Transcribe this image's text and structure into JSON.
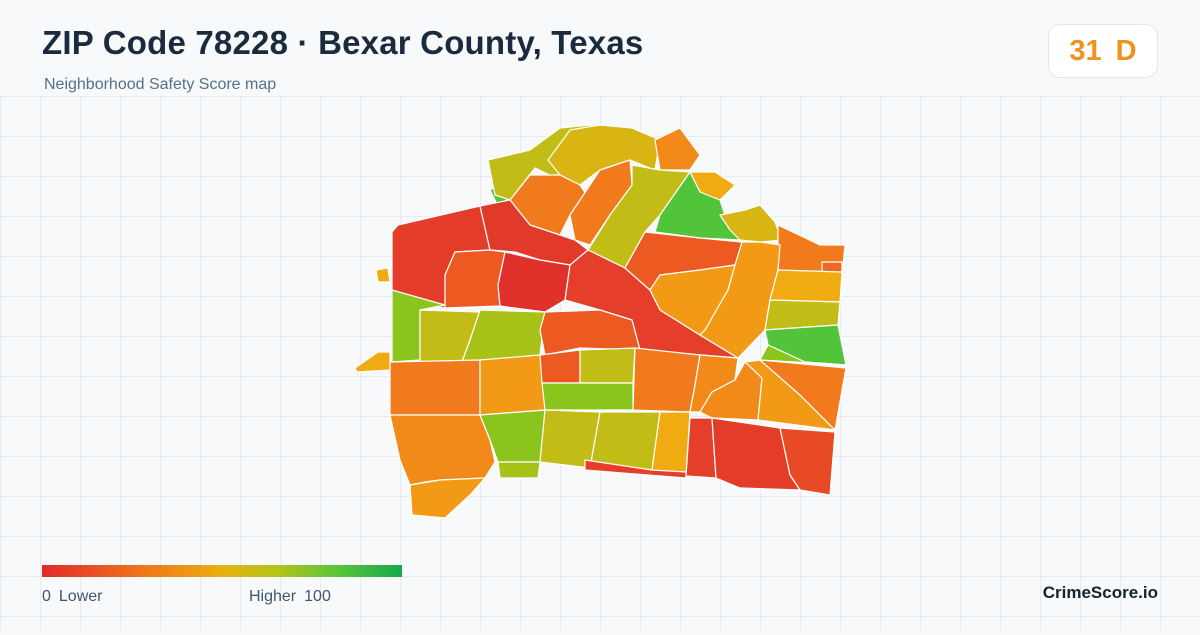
{
  "header": {
    "title": "ZIP Code 78228 · Bexar County, Texas",
    "subtitle": "Neighborhood Safety Score map"
  },
  "score": {
    "value": "31",
    "grade": "D",
    "color": "#ee9220"
  },
  "legend": {
    "low_value": "0",
    "low_label": "Lower",
    "high_label": "Higher",
    "high_value": "100",
    "colors": [
      "#e02b2b",
      "#f07a1a",
      "#e8b010",
      "#b5c41a",
      "#5bc43a",
      "#15a84e"
    ]
  },
  "brand": "CrimeScore.io",
  "map": {
    "regions": [
      {
        "id": "nw-large",
        "color": "#e33d2a"
      },
      {
        "id": "n-red",
        "color": "#e23a2a"
      },
      {
        "id": "center-red",
        "color": "#e0302a"
      },
      {
        "id": "diag-red",
        "color": "#e53f2b"
      },
      {
        "id": "red-orange-1",
        "color": "#ec5a22"
      },
      {
        "id": "red-orange-2",
        "color": "#ee6a20"
      },
      {
        "id": "orange-1",
        "color": "#f07a1c"
      },
      {
        "id": "orange-2",
        "color": "#f28a1a"
      },
      {
        "id": "orange-3",
        "color": "#f29a16"
      },
      {
        "id": "amber",
        "color": "#f0aa12"
      },
      {
        "id": "gold",
        "color": "#d8b512"
      },
      {
        "id": "olive",
        "color": "#c2bd16"
      },
      {
        "id": "yellow-green",
        "color": "#a8c218"
      },
      {
        "id": "lime",
        "color": "#8cc41e"
      },
      {
        "id": "green",
        "color": "#52c43a"
      }
    ]
  }
}
